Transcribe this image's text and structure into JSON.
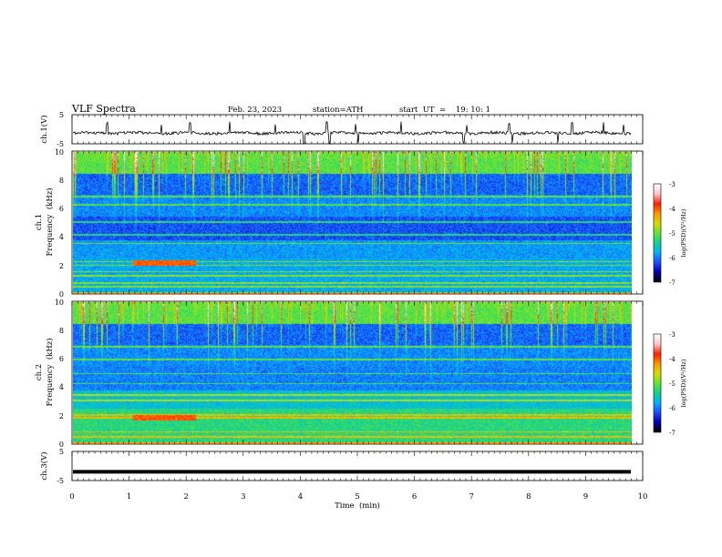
{
  "header": {
    "title": "VLF  Spectra",
    "date": "Feb. 23, 2023",
    "station": "station=ATH",
    "start": "start  UT  =    19: 10: 1"
  },
  "colors": {
    "waveform": "#000000",
    "colormap": [
      "#000000",
      "#0000b4",
      "#1e50ff",
      "#00b4ff",
      "#14d28c",
      "#64e632",
      "#dcdc00",
      "#ff9600",
      "#ff1e00",
      "#ffc8c8",
      "#ffffff"
    ]
  },
  "chart_data": [
    {
      "id": "ch1-waveform",
      "type": "line",
      "ylabel": "ch.1(V)",
      "ylim": [
        -5,
        5
      ],
      "y_ticks": [
        "5",
        "-5"
      ],
      "xlim": [
        0,
        10
      ],
      "baseline": -1.3,
      "noise_amplitude": 1.0,
      "spikes_up": [
        0.6,
        1.55,
        2.05,
        2.75,
        3.55,
        4.45,
        4.95,
        5.75,
        6.9,
        7.65,
        8.75,
        9.3,
        9.65
      ],
      "spikes_down": [
        4.05,
        4.5,
        5.0,
        6.85,
        7.7,
        8.5
      ]
    },
    {
      "id": "ch1-spectrogram",
      "type": "heatmap",
      "ylabel_channel": "ch.1",
      "ylabel": "Frequency  (kHz)",
      "ylim": [
        0,
        10
      ],
      "y_ticks": [
        "0",
        "2",
        "4",
        "6",
        "8",
        "10"
      ],
      "xlim": [
        0,
        9.8
      ],
      "colorbar_label": "log(PSD)(V²/Hz)",
      "colorbar_ticks": [
        "-3",
        "-4",
        "-5",
        "-6",
        "-7"
      ],
      "colorbar_range": [
        -7,
        -3
      ],
      "hum_bands_khz": [
        0.1,
        0.55,
        0.8,
        1.3,
        1.6,
        2.05,
        2.3,
        3.6,
        4.2,
        5.1,
        6.3,
        6.9
      ],
      "enhanced_segment": {
        "t_start": 1.05,
        "t_end": 2.15,
        "f_khz": 2.2
      }
    },
    {
      "id": "ch2-spectrogram",
      "type": "heatmap",
      "ylabel_channel": "ch.2",
      "ylabel": "Frequency  (kHz)",
      "ylim": [
        0,
        10
      ],
      "y_ticks": [
        "0",
        "2",
        "4",
        "6",
        "8",
        "10"
      ],
      "xlim": [
        0,
        9.8
      ],
      "colorbar_label": "log(PSD)(V²/Hz)",
      "colorbar_ticks": [
        "-3",
        "-4",
        "-5",
        "-6",
        "-7"
      ],
      "colorbar_range": [
        -7,
        -3
      ],
      "hum_bands_khz": [
        0.1,
        0.55,
        0.9,
        1.9,
        2.1,
        3.1,
        3.5,
        4.3,
        5.0,
        6.0,
        6.9
      ],
      "enhanced_segment": {
        "t_start": 1.05,
        "t_end": 2.15,
        "f_khz": 1.9
      }
    },
    {
      "id": "ch3-waveform",
      "type": "line",
      "ylabel": "ch.3(V)",
      "ylim": [
        -5,
        5
      ],
      "y_ticks": [
        "5",
        "-5"
      ],
      "xlim": [
        0,
        10
      ],
      "baseline": -2.0,
      "noise_amplitude": 0.0
    }
  ],
  "x_axis": {
    "label": "Time  (min)",
    "range": [
      0,
      10
    ],
    "ticks": [
      "0",
      "1",
      "2",
      "3",
      "4",
      "5",
      "6",
      "7",
      "8",
      "9",
      "10"
    ]
  }
}
